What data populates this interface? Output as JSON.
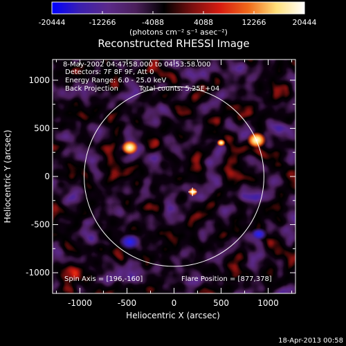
{
  "colorbar": {
    "ticks": [
      "-20444",
      "-12266",
      "-4088",
      "4088",
      "12266",
      "20444"
    ],
    "tick_values": [
      -20444,
      -12266,
      -4088,
      4088,
      12266,
      20444
    ],
    "min": -20444,
    "max": 20444,
    "unit_label": "(photons cm⁻² s⁻¹ asec⁻²)",
    "colors": [
      "#0000ff",
      "#3b1fb0",
      "#5b2a8a",
      "#4a1f5a",
      "#000000",
      "#7a0f0f",
      "#d81c10",
      "#f06a1a",
      "#ffe07a",
      "#ffffff"
    ]
  },
  "title": "Reconstructed RHESSI Image",
  "info": {
    "time_range": "8-May-2002 04:47:58.000 to 04:53:58.000",
    "detectors": "Detectors: 7F 8F 9F, Att 0",
    "energy_range": "Energy Range: 6.0 - 25.0 keV",
    "method": "Back Projection",
    "total_counts": "Total counts: 5.25E+04",
    "spin_axis": "Spin Axis = [196,-160]",
    "flare_position": "Flare Position = [877,378]"
  },
  "footer": {
    "timestamp": "18-Apr-2013 00:58"
  },
  "chart_data": {
    "type": "heatmap",
    "title": "Reconstructed RHESSI Image",
    "xlabel": "Heliocentric X (arcsec)",
    "ylabel": "Heliocentric Y (arcsec)",
    "xlim": [
      -1290,
      1290
    ],
    "ylim": [
      -1215,
      1215
    ],
    "x_ticks": [
      -1000,
      -500,
      0,
      500,
      1000
    ],
    "y_ticks": [
      -1000,
      -500,
      0,
      500,
      1000
    ],
    "x_tick_labels": [
      "-1000",
      "-500",
      "0",
      "500",
      "1000"
    ],
    "y_tick_labels": [
      "-1000",
      "-500",
      "0",
      "500",
      "1000"
    ],
    "solar_limb": {
      "center": [
        0,
        0
      ],
      "radius": 955
    },
    "spin_axis_marker": [
      196,
      -160
    ],
    "bright_sources": [
      {
        "x": 877,
        "y": 378,
        "level": 1.0
      },
      {
        "x": -470,
        "y": 300,
        "level": 0.9
      },
      {
        "x": 200,
        "y": -160,
        "level": 0.5
      },
      {
        "x": 500,
        "y": 350,
        "level": 0.45
      }
    ],
    "dark_sources": [
      {
        "x": -470,
        "y": -680,
        "level": -0.75
      },
      {
        "x": 900,
        "y": -600,
        "level": -0.6
      }
    ]
  }
}
